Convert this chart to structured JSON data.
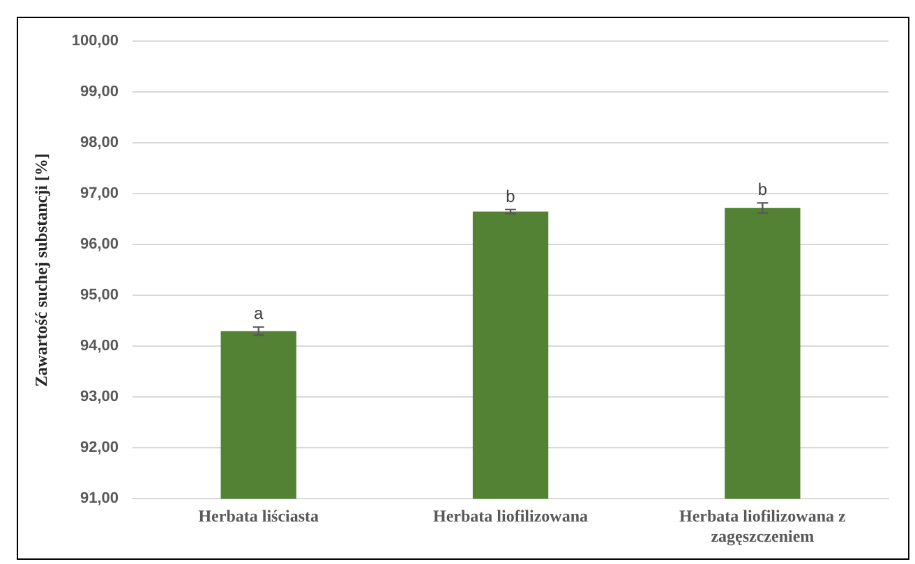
{
  "chart_data": {
    "type": "bar",
    "ylabel": "Zawartość suchej substancji [%]",
    "categories": [
      "Herbata liściasta",
      "Herbata liofilizowana",
      "Herbata liofilizowana z zagęszczeniem"
    ],
    "values": [
      94.3,
      96.65,
      96.72
    ],
    "color": "#548235",
    "errors": [
      0.08,
      0.04,
      0.1
    ],
    "ylim": [
      91,
      100
    ],
    "yticks": [
      {
        "value": 91,
        "label": "91,00"
      },
      {
        "value": 92,
        "label": "92,00"
      },
      {
        "value": 93,
        "label": "93,00"
      },
      {
        "value": 94,
        "label": "94,00"
      },
      {
        "value": 95,
        "label": "95,00"
      },
      {
        "value": 96,
        "label": "96,00"
      },
      {
        "value": 97,
        "label": "97,00"
      },
      {
        "value": 98,
        "label": "98,00"
      },
      {
        "value": 99,
        "label": "99,00"
      },
      {
        "value": 100,
        "label": "100,00"
      }
    ],
    "grid": "y",
    "legend": false,
    "annotations": [
      {
        "text": "a",
        "x": "Herbata liściasta",
        "y": 94.38
      },
      {
        "text": "b",
        "x": "Herbata liofilizowana",
        "y": 96.69
      },
      {
        "text": "b",
        "x": "Herbata liofilizowana z zagęszczeniem",
        "y": 96.82
      }
    ]
  }
}
